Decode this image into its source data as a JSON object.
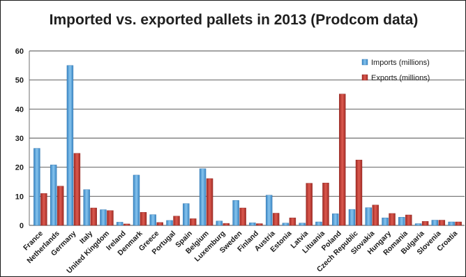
{
  "chart_data": {
    "type": "bar",
    "title": "Imported vs. exported pallets in 2013 (Prodcom data)",
    "xlabel": "",
    "ylabel": "",
    "ylim": [
      0,
      60
    ],
    "yticks": [
      0,
      10,
      20,
      30,
      40,
      50,
      60
    ],
    "grid": true,
    "legend_position": "top-right",
    "categories": [
      "France",
      "Netherlands",
      "Germany",
      "Italy",
      "United Kingdom",
      "Ireland",
      "Denmark",
      "Greece",
      "Portugal",
      "Spain",
      "Belgium",
      "Luxemburg",
      "Sweden",
      "Finland",
      "Austria",
      "Estonia",
      "Latvia",
      "Lituania",
      "Poland",
      "Czech Republic",
      "Slovakia",
      "Hungary",
      "Romania",
      "Bulgaria",
      "Slovenia",
      "Croatia"
    ],
    "series": [
      {
        "name": "Imports (millions)",
        "color": "#4f9fd6",
        "values": [
          26.5,
          20.8,
          55,
          12.3,
          5.4,
          1.1,
          17.3,
          3.7,
          1.7,
          7.5,
          19.5,
          1.5,
          8.6,
          0.9,
          10.4,
          0.8,
          0.8,
          1.2,
          4.0,
          5.5,
          6.1,
          2.6,
          2.8,
          0.6,
          1.8,
          1.2
        ]
      },
      {
        "name": "Exports (millions)",
        "color": "#c23b32",
        "values": [
          11.0,
          13.5,
          24.8,
          6.0,
          5.1,
          0.5,
          4.5,
          1.0,
          3.2,
          2.3,
          16.1,
          0.7,
          6.0,
          0.6,
          4.2,
          2.6,
          14.5,
          14.6,
          45.2,
          22.5,
          7.0,
          4.1,
          3.6,
          1.4,
          1.8,
          1.2
        ]
      }
    ]
  }
}
